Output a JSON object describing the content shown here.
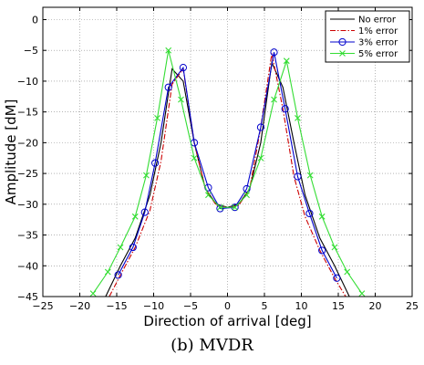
{
  "chart_data": {
    "type": "line",
    "xlabel": "Direction of arrival [deg]",
    "ylabel": "Amplitude [dM]",
    "xlim": [
      -25,
      25
    ],
    "ylim": [
      -45,
      2
    ],
    "xticks": [
      -25,
      -20,
      -15,
      -10,
      -5,
      0,
      5,
      10,
      15,
      20,
      25
    ],
    "yticks": [
      0,
      -5,
      -10,
      -15,
      -20,
      -25,
      -30,
      -35,
      -40,
      -45
    ],
    "grid": true,
    "legend_position": "top-right",
    "series": [
      {
        "name": "No error",
        "color": "#000000",
        "style": "solid",
        "marker": "none",
        "x": [
          -16.5,
          -14.5,
          -12.5,
          -10.5,
          -9,
          -7.5,
          -6,
          -4.5,
          -3,
          -1.5,
          0,
          1.5,
          3,
          4.5,
          6,
          7.5,
          9,
          10.5,
          12.5,
          14.5,
          16.5
        ],
        "y": [
          -45,
          -40,
          -35.5,
          -28.5,
          -20,
          -8,
          -10,
          -20,
          -27.5,
          -30,
          -30.5,
          -30,
          -27.5,
          -20,
          -7,
          -11,
          -20,
          -28.5,
          -35.5,
          -40,
          -45
        ]
      },
      {
        "name": "1% error",
        "color": "#cc0000",
        "style": "dashdot",
        "marker": "none",
        "x": [
          -16,
          -14.5,
          -12.5,
          -10.5,
          -9,
          -7.5,
          -6,
          -4.5,
          -3,
          -1.5,
          0,
          1.5,
          3,
          4.5,
          6,
          7.5,
          9,
          10.5,
          12.5,
          14.5,
          16
        ],
        "y": [
          -45,
          -41.5,
          -37,
          -31,
          -23,
          -10.5,
          -8,
          -20,
          -27.5,
          -30.2,
          -30.5,
          -30.2,
          -27.5,
          -17.5,
          -5.5,
          -14.5,
          -25.5,
          -32,
          -37.5,
          -42,
          -45
        ]
      },
      {
        "name": "3% error",
        "color": "#0000cc",
        "style": "solid",
        "marker": "circle",
        "x": [
          -14.8,
          -12.8,
          -11.2,
          -9.8,
          -8,
          -6,
          -4.5,
          -2.6,
          -1,
          1,
          2.6,
          4.5,
          6.3,
          7.8,
          9.5,
          11.1,
          12.8,
          14.8
        ],
        "y": [
          -41.5,
          -37,
          -31.3,
          -23.3,
          -11,
          -7.8,
          -20,
          -27.3,
          -30.7,
          -30.5,
          -27.5,
          -17.5,
          -5.3,
          -14.5,
          -25.5,
          -31.5,
          -37.5,
          -42
        ]
      },
      {
        "name": "5% error",
        "color": "#33dd33",
        "style": "solid",
        "marker": "x",
        "x": [
          -18.2,
          -16.2,
          -14.5,
          -12.5,
          -11,
          -9.5,
          -8,
          -6.3,
          -4.5,
          -2.6,
          -1,
          1,
          2.6,
          4.5,
          6.3,
          8,
          9.5,
          11.2,
          12.8,
          14.5,
          16.2,
          18.2
        ],
        "y": [
          -44.5,
          -41,
          -37,
          -32,
          -25.3,
          -16,
          -5,
          -13,
          -22.5,
          -28.5,
          -30.5,
          -30.5,
          -28.5,
          -22.5,
          -13,
          -6.7,
          -16,
          -25.3,
          -32,
          -37,
          -41,
          -44.5
        ]
      }
    ]
  },
  "caption": "(b) MVDR"
}
